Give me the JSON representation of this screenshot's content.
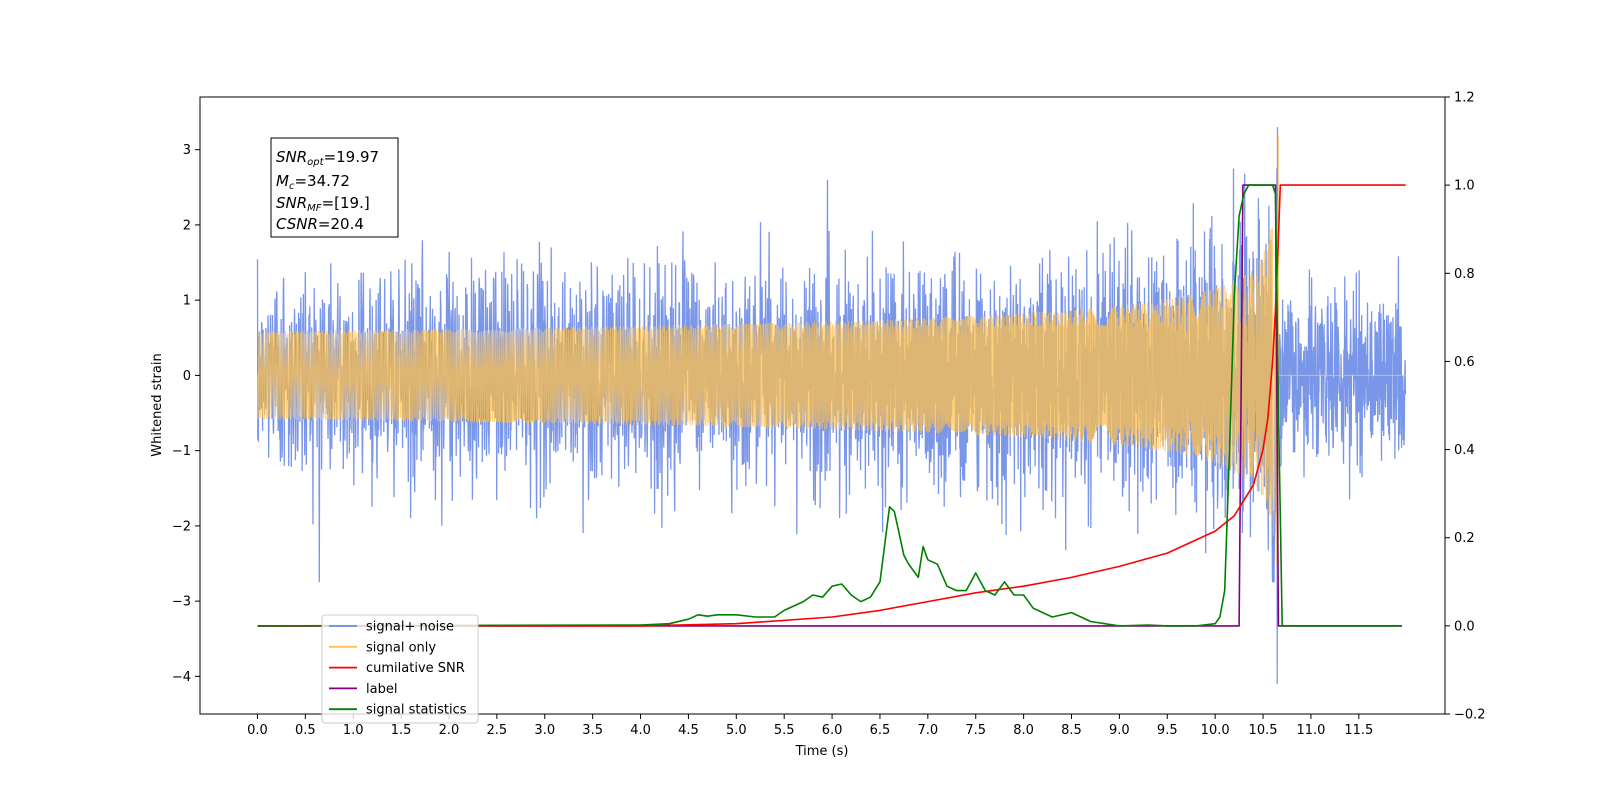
{
  "chart_data": {
    "type": "line",
    "title": "",
    "xlabel": "Time (s)",
    "ylabel": "Whitened strain",
    "xlim": [
      -0.6,
      12.4
    ],
    "ylim_left": [
      -4.5,
      3.7
    ],
    "ylim_right": [
      -0.2,
      1.2
    ],
    "x_ticks": [
      "0.0",
      "0.5",
      "1.0",
      "1.5",
      "2.0",
      "2.5",
      "3.0",
      "3.5",
      "4.0",
      "4.5",
      "5.0",
      "5.5",
      "6.0",
      "6.5",
      "7.0",
      "7.5",
      "8.0",
      "8.5",
      "9.0",
      "9.5",
      "10.0",
      "10.5",
      "11.0",
      "11.5"
    ],
    "y_ticks_left": [
      "3",
      "2",
      "1",
      "0",
      "−1",
      "−2",
      "−3",
      "−4"
    ],
    "y_ticks_right": [
      "1.2",
      "1.0",
      "0.8",
      "0.6",
      "0.4",
      "0.2",
      "0.0",
      "−0.2"
    ],
    "grid": false,
    "legend_position": "lower-left",
    "colors": {
      "signal_noise": "#6b8be6",
      "signal_only": "#ffc04d",
      "cumulative_snr": "#ff0000",
      "label": "#800080",
      "signal_statistics": "#008000"
    },
    "series": [
      {
        "name": "signal+ noise",
        "axis": "left",
        "description_of_shape": "noise band roughly ±1.3 with spikes to about ±2.7; merger peak near 10.65 s reaching about 3.3 and −4.1",
        "x_range": [
          0.0,
          11.99
        ],
        "typical_amplitude": 1.3,
        "peak_max": 3.3,
        "peak_min": -4.1,
        "peak_time": 10.65
      },
      {
        "name": "signal only",
        "axis": "left",
        "x_range": [
          0.0,
          11.99
        ],
        "chirp_end_time": 10.66,
        "peak_amplitude": 3.35
      },
      {
        "name": "cumilative SNR",
        "axis": "right",
        "x": [
          0.0,
          4.0,
          5.0,
          6.0,
          6.5,
          7.0,
          7.5,
          8.0,
          8.5,
          9.0,
          9.5,
          10.0,
          10.2,
          10.4,
          10.5,
          10.55,
          10.6,
          10.63,
          10.66,
          10.68,
          11.99
        ],
        "y": [
          0.0,
          0.0,
          0.005,
          0.02,
          0.035,
          0.055,
          0.075,
          0.09,
          0.11,
          0.135,
          0.165,
          0.215,
          0.25,
          0.32,
          0.4,
          0.47,
          0.6,
          0.72,
          0.88,
          1.0,
          1.0
        ]
      },
      {
        "name": "label",
        "axis": "right",
        "x": [
          0.0,
          10.25,
          10.29,
          10.63,
          10.66,
          11.95
        ],
        "y": [
          0.0,
          0.0,
          1.0,
          1.0,
          0.0,
          0.0
        ]
      },
      {
        "name": "signal statistics",
        "axis": "right",
        "x": [
          0.0,
          4.0,
          4.3,
          4.5,
          4.6,
          4.7,
          4.8,
          5.0,
          5.2,
          5.4,
          5.5,
          5.6,
          5.7,
          5.8,
          5.9,
          6.0,
          6.1,
          6.2,
          6.3,
          6.4,
          6.5,
          6.6,
          6.65,
          6.7,
          6.75,
          6.8,
          6.9,
          6.95,
          7.0,
          7.1,
          7.2,
          7.3,
          7.4,
          7.5,
          7.6,
          7.7,
          7.8,
          7.9,
          8.0,
          8.1,
          8.2,
          8.3,
          8.5,
          8.7,
          9.0,
          9.3,
          9.5,
          9.8,
          10.0,
          10.05,
          10.1,
          10.15,
          10.2,
          10.25,
          10.3,
          10.35,
          10.4,
          10.5,
          10.6,
          10.63,
          10.66,
          10.7,
          11.95
        ],
        "y": [
          0.0,
          0.002,
          0.005,
          0.015,
          0.025,
          0.022,
          0.025,
          0.025,
          0.02,
          0.02,
          0.035,
          0.045,
          0.055,
          0.07,
          0.065,
          0.09,
          0.095,
          0.07,
          0.055,
          0.065,
          0.1,
          0.27,
          0.26,
          0.21,
          0.16,
          0.14,
          0.11,
          0.18,
          0.15,
          0.14,
          0.09,
          0.08,
          0.08,
          0.12,
          0.08,
          0.07,
          0.1,
          0.07,
          0.07,
          0.04,
          0.03,
          0.02,
          0.03,
          0.01,
          0.0,
          0.002,
          0.0,
          0.0,
          0.005,
          0.02,
          0.08,
          0.4,
          0.75,
          0.93,
          0.98,
          1.0,
          1.0,
          1.0,
          1.0,
          0.98,
          0.5,
          0.0,
          0.0
        ]
      }
    ],
    "legend": [
      "signal+ noise",
      "signal only",
      "cumilative SNR",
      "label",
      "signal statistics"
    ],
    "annotation_box": {
      "snr_opt_label": "SNR",
      "snr_opt_sub": "opt",
      "snr_opt_value": "=19.97",
      "mc_label": "M",
      "mc_sub": "c",
      "mc_value": "=34.72",
      "snr_mf_label": "SNR",
      "snr_mf_sub": "MF",
      "snr_mf_value": "=[19.]",
      "csnr_label": "CSNR",
      "csnr_value": "=20.4"
    }
  }
}
